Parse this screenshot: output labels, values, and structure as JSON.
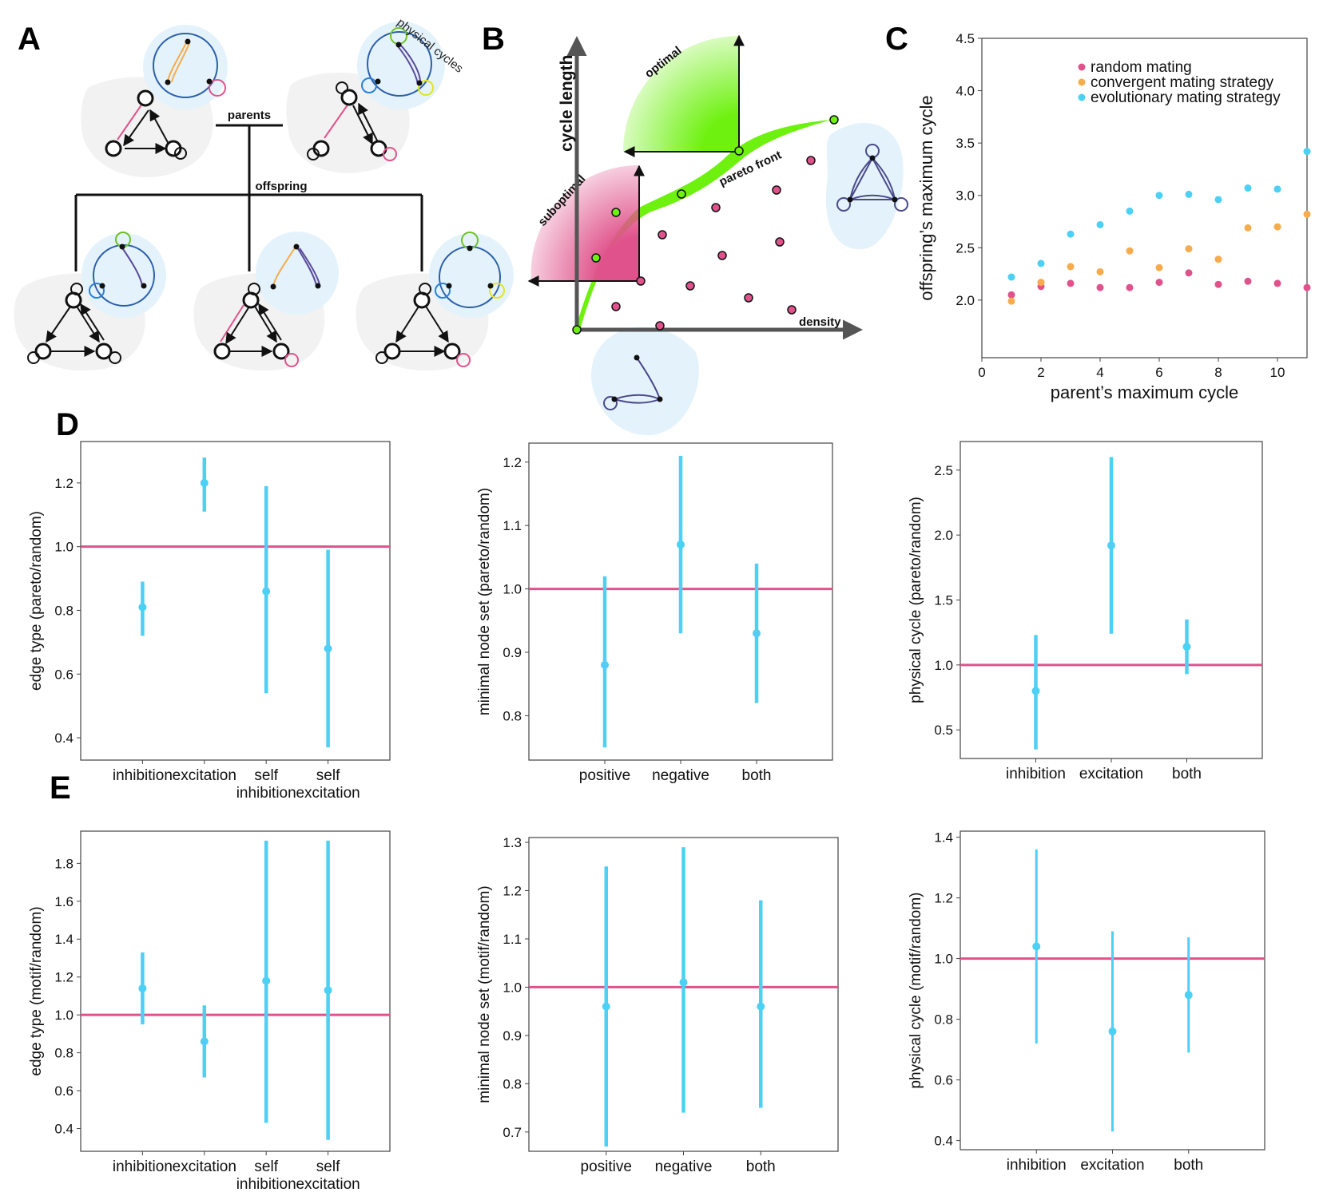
{
  "panels": {
    "a": {
      "letter": "A",
      "parents": "parents",
      "offspring": "offspring",
      "physical_cycles": "physical cycles"
    },
    "b": {
      "letter": "B",
      "y_axis": "cycle length",
      "x_axis": "density",
      "optimal": "optimal",
      "suboptimal": "suboptimal",
      "pareto_front": "pareto front"
    },
    "c": {
      "letter": "C"
    },
    "d": {
      "letter": "D"
    },
    "e": {
      "letter": "E"
    }
  },
  "colors": {
    "pink": "#e0528b",
    "orange": "#f6ab4c",
    "cyan": "#4cd0f4",
    "green": "#6ef10f",
    "navy": "#2c3e8c",
    "blob": "#f1f2f1",
    "lightblue": "#e4f3fb"
  },
  "chart_data": [
    {
      "id": "C",
      "type": "scatter",
      "xlabel": "parent’s maximum cycle",
      "ylabel": "offspring’s maximum cycle",
      "xlim": [
        0,
        11
      ],
      "ylim": [
        1.45,
        4.5
      ],
      "xticks": [
        0,
        2,
        4,
        6,
        8,
        10
      ],
      "yticks": [
        2.0,
        2.5,
        3.0,
        3.5,
        4.0,
        4.5
      ],
      "legend_position": "top-right",
      "series": [
        {
          "name": "random mating",
          "color": "#e0528b",
          "x": [
            1,
            2,
            3,
            4,
            5,
            6,
            7,
            8,
            9,
            10,
            11
          ],
          "y": [
            2.05,
            2.13,
            2.16,
            2.12,
            2.12,
            2.17,
            2.26,
            2.15,
            2.18,
            2.16,
            2.12
          ]
        },
        {
          "name": "convergent mating strategy",
          "color": "#f6ab4c",
          "x": [
            1,
            2,
            3,
            4,
            5,
            6,
            7,
            8,
            9,
            10,
            11
          ],
          "y": [
            1.99,
            2.17,
            2.32,
            2.27,
            2.47,
            2.31,
            2.49,
            2.39,
            2.69,
            2.7,
            2.82
          ]
        },
        {
          "name": "evolutionary mating strategy",
          "color": "#4cd0f4",
          "x": [
            1,
            2,
            3,
            4,
            5,
            6,
            7,
            8,
            9,
            10,
            11
          ],
          "y": [
            2.22,
            2.35,
            2.63,
            2.72,
            2.85,
            3.0,
            3.01,
            2.96,
            3.07,
            3.06,
            3.42
          ]
        }
      ]
    },
    {
      "id": "D1",
      "type": "errorbar",
      "ylabel": "edge type (pareto/random)",
      "categories": [
        "inhibition",
        "excitation",
        "self\ninhibition",
        "self\nexcitation"
      ],
      "values": [
        0.81,
        1.2,
        0.86,
        0.68
      ],
      "lower": [
        0.72,
        1.11,
        0.54,
        0.37
      ],
      "upper": [
        0.89,
        1.28,
        1.19,
        0.99
      ],
      "reference_line": 1.0,
      "ylim": [
        0.33,
        1.33
      ],
      "yticks": [
        0.4,
        0.6,
        0.8,
        1.0,
        1.2
      ]
    },
    {
      "id": "D2",
      "type": "errorbar",
      "ylabel": "minimal node set (pareto/random)",
      "categories": [
        "positive",
        "negative",
        "both"
      ],
      "values": [
        0.88,
        1.07,
        0.93
      ],
      "lower": [
        0.75,
        0.93,
        0.82
      ],
      "upper": [
        1.02,
        1.21,
        1.04
      ],
      "reference_line": 1.0,
      "ylim": [
        0.73,
        1.23
      ],
      "yticks": [
        0.8,
        0.9,
        1.0,
        1.1,
        1.2
      ]
    },
    {
      "id": "D3",
      "type": "errorbar",
      "ylabel": "physical cycle (pareto/random)",
      "categories": [
        "inhibition",
        "excitation",
        "both"
      ],
      "values": [
        0.8,
        1.92,
        1.14
      ],
      "lower": [
        0.35,
        1.24,
        0.93
      ],
      "upper": [
        1.23,
        2.6,
        1.35
      ],
      "reference_line": 1.0,
      "ylim": [
        0.28,
        2.72
      ],
      "yticks": [
        0.5,
        1.0,
        1.5,
        2.0,
        2.5
      ]
    },
    {
      "id": "E1",
      "type": "errorbar",
      "ylabel": "edge type (motif/random)",
      "categories": [
        "inhibition",
        "excitation",
        "self\ninhibition",
        "self\nexcitation"
      ],
      "values": [
        1.14,
        0.86,
        1.18,
        1.13
      ],
      "lower": [
        0.95,
        0.67,
        0.43,
        0.34
      ],
      "upper": [
        1.33,
        1.05,
        1.92,
        1.92
      ],
      "reference_line": 1.0,
      "ylim": [
        0.28,
        1.97
      ],
      "yticks": [
        0.4,
        0.6,
        0.8,
        1.0,
        1.2,
        1.4,
        1.6,
        1.8
      ]
    },
    {
      "id": "E2",
      "type": "errorbar",
      "ylabel": "minimal node set (motif/random)",
      "categories": [
        "positive",
        "negative",
        "both"
      ],
      "values": [
        0.96,
        1.01,
        0.96
      ],
      "lower": [
        0.67,
        0.74,
        0.75
      ],
      "upper": [
        1.25,
        1.29,
        1.18
      ],
      "reference_line": 1.0,
      "ylim": [
        0.66,
        1.31
      ],
      "yticks": [
        0.7,
        0.8,
        0.9,
        1.0,
        1.1,
        1.2,
        1.3
      ]
    },
    {
      "id": "E3",
      "type": "errorbar",
      "ylabel": "physical cycle (motif/random)",
      "categories": [
        "inhibition",
        "excitation",
        "both"
      ],
      "values": [
        1.04,
        0.76,
        0.88
      ],
      "lower": [
        0.72,
        0.43,
        0.69
      ],
      "upper": [
        1.36,
        1.09,
        1.07
      ],
      "reference_line": 1.0,
      "ylim": [
        0.37,
        1.42
      ],
      "yticks": [
        0.4,
        0.6,
        0.8,
        1.0,
        1.2,
        1.4
      ]
    }
  ]
}
